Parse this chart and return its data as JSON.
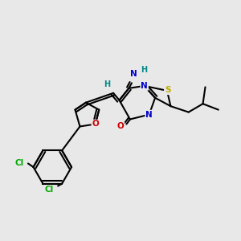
{
  "bg_color": "#e8e8e8",
  "bond_color": "#000000",
  "bond_width": 1.5,
  "atom_colors": {
    "C": "#000000",
    "N": "#0000cc",
    "O": "#cc0000",
    "S": "#bbaa00",
    "Cl": "#00aa00",
    "H": "#008888"
  },
  "font_size": 7.5,
  "fig_width": 3.0,
  "fig_height": 3.0,
  "dpi": 100,
  "xlim": [
    0,
    10
  ],
  "ylim": [
    0,
    10
  ]
}
